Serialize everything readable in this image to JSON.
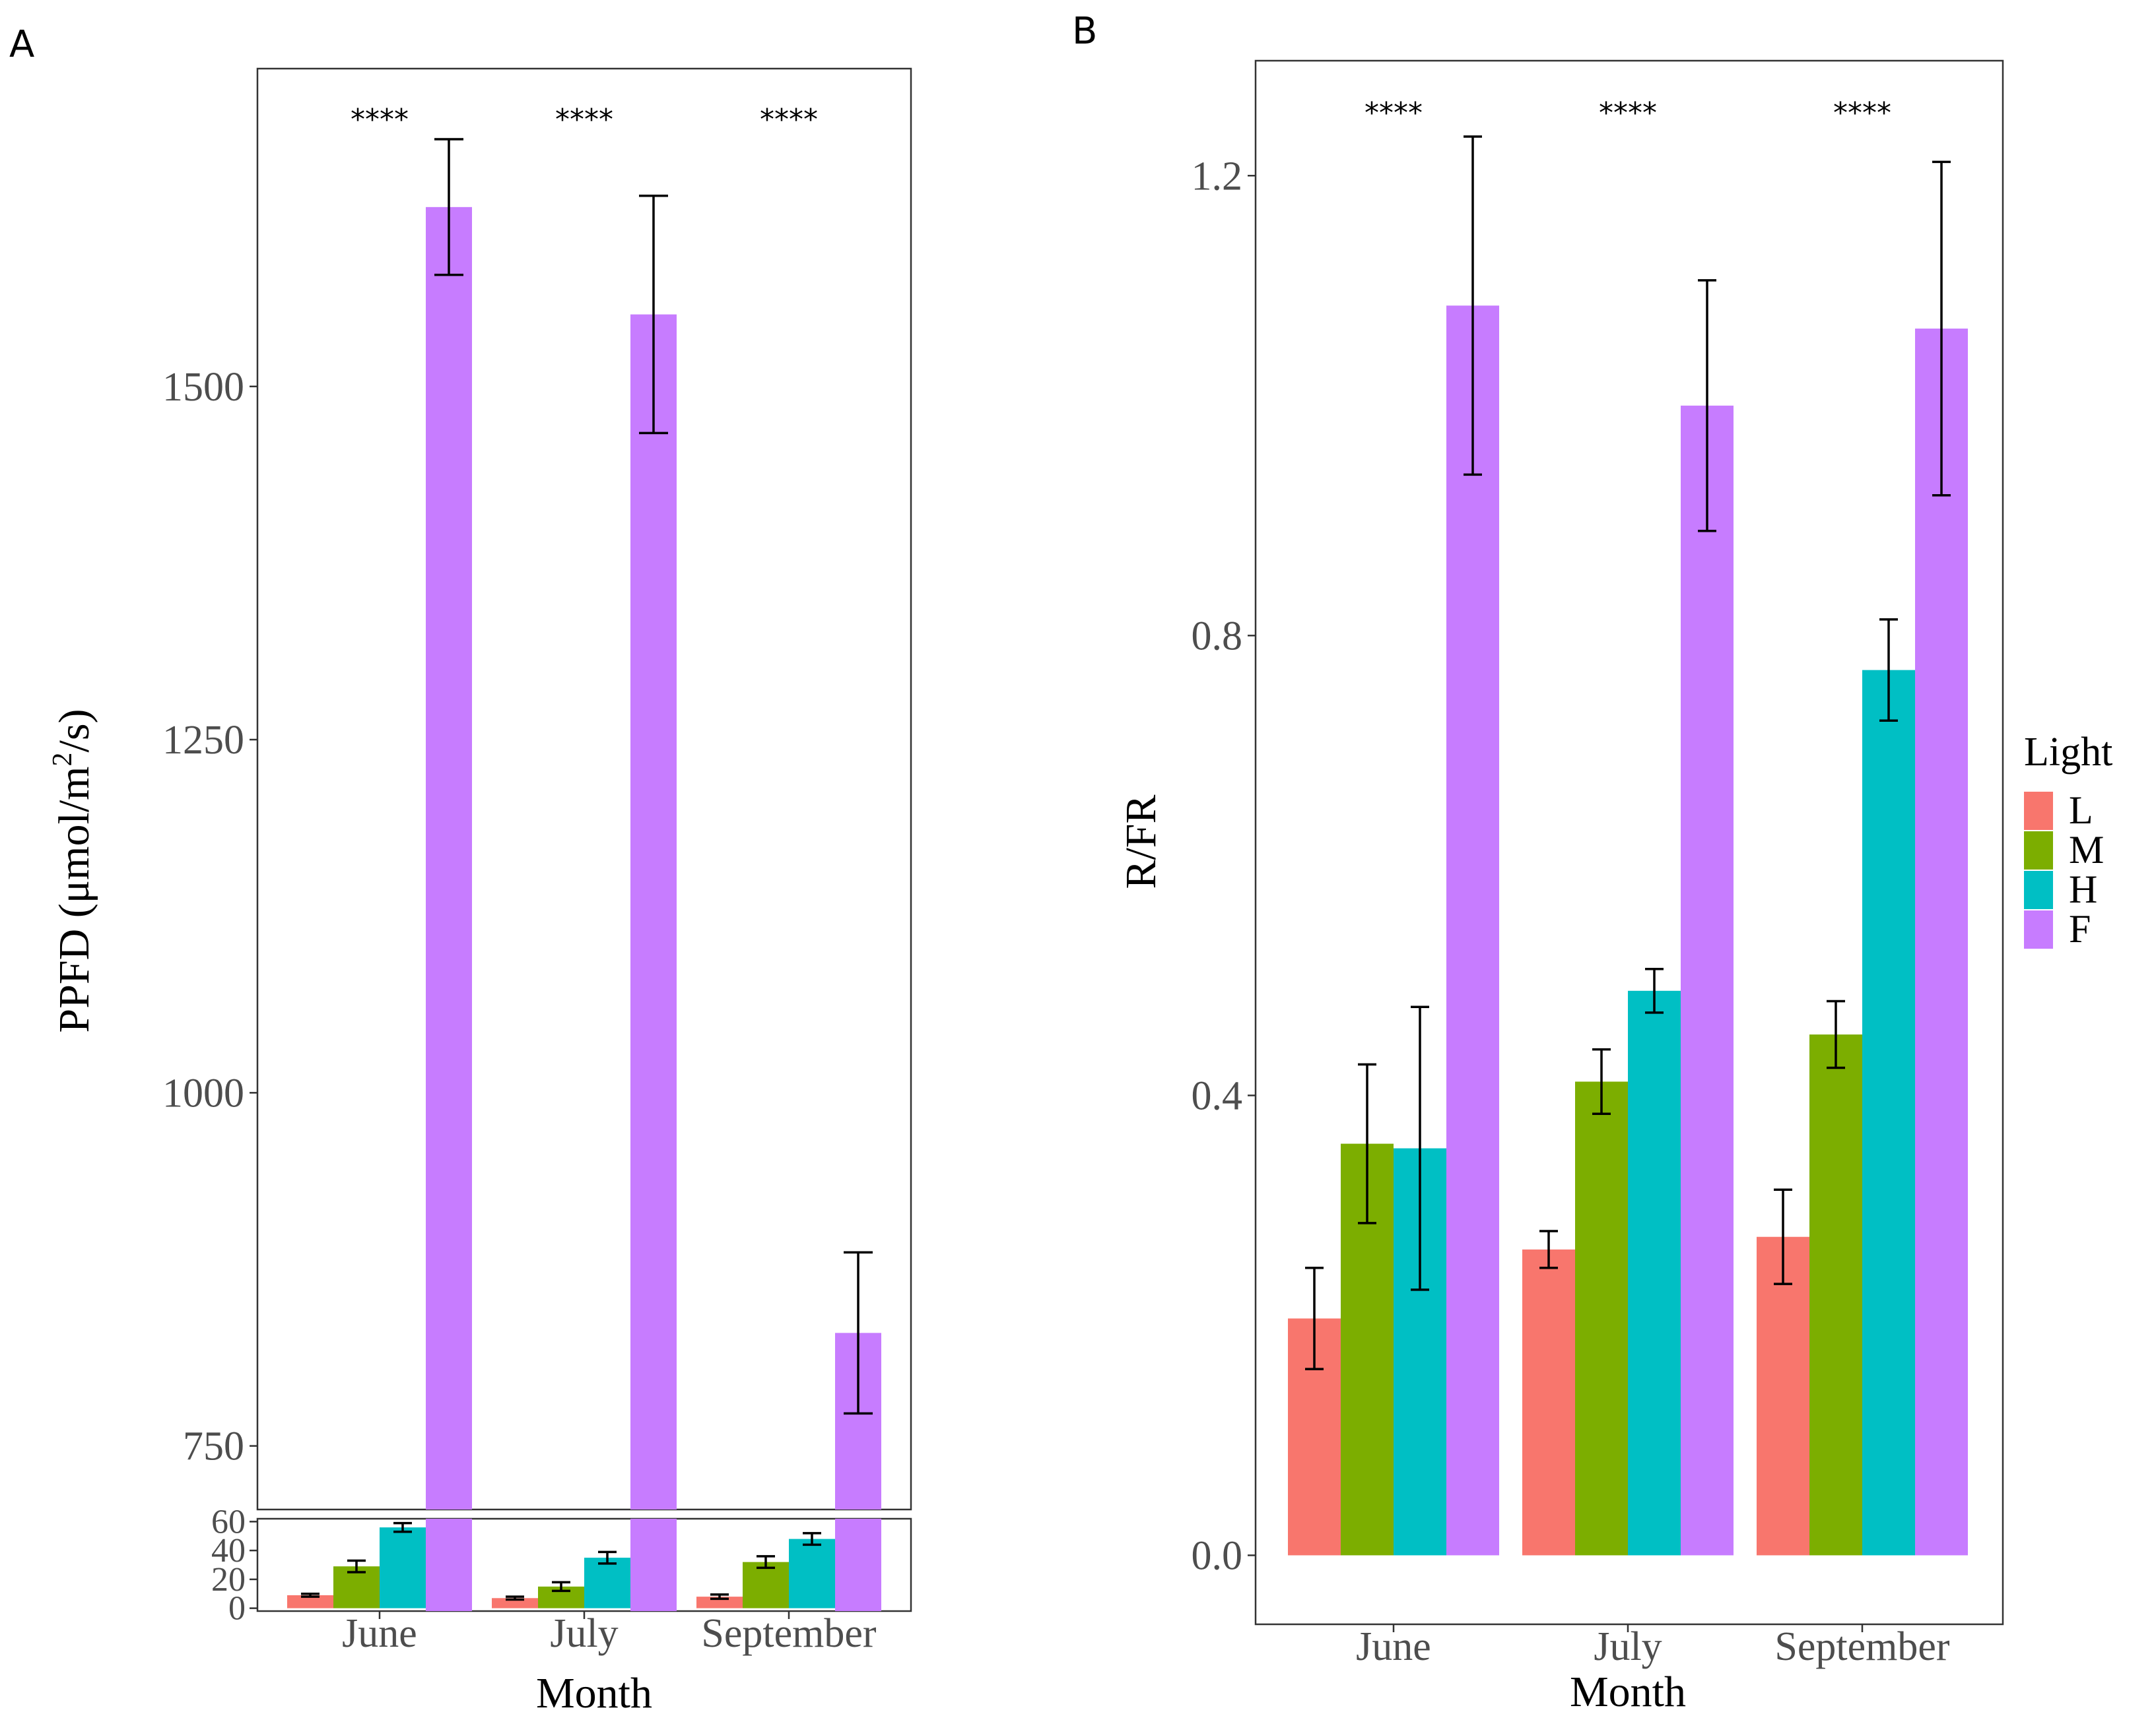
{
  "panels": {
    "a_label": "A",
    "b_label": "B"
  },
  "legend": {
    "title": "Light",
    "items": [
      {
        "label": "L",
        "color": "#F8766D"
      },
      {
        "label": "M",
        "color": "#7CAE00"
      },
      {
        "label": "H",
        "color": "#00BFC4"
      },
      {
        "label": "F",
        "color": "#C77CFF"
      }
    ]
  },
  "chart_data": [
    {
      "panel": "A",
      "type": "bar",
      "title": "",
      "xlabel": "Month",
      "ylabel_main": "PPFD (μmol/m",
      "ylabel_sup": "2",
      "ylabel_tail": "/s)",
      "categories": [
        "June",
        "July",
        "September"
      ],
      "series": [
        {
          "name": "L",
          "values": [
            9,
            7,
            8
          ],
          "errors": [
            1,
            1,
            1.5
          ]
        },
        {
          "name": "M",
          "values": [
            29,
            15,
            32
          ],
          "errors": [
            4,
            3,
            4
          ]
        },
        {
          "name": "H",
          "values": [
            56,
            35,
            48
          ],
          "errors": [
            3,
            4,
            4
          ]
        },
        {
          "name": "F",
          "values": [
            1627,
            1551,
            830
          ],
          "errors": [
            48,
            84,
            57
          ]
        }
      ],
      "significance": [
        "****",
        "****",
        "****"
      ],
      "ylim_upper": [
        705,
        1725
      ],
      "ylim_lower": [
        -2,
        62
      ],
      "yticks_upper": [
        750,
        1000,
        1250,
        1500
      ],
      "yticks_lower": [
        0,
        20,
        40,
        60
      ]
    },
    {
      "panel": "B",
      "type": "bar",
      "title": "",
      "xlabel": "Month",
      "ylabel": "R/FR",
      "categories": [
        "June",
        "July",
        "September"
      ],
      "series": [
        {
          "name": "L",
          "values": [
            0.206,
            0.266,
            0.277
          ],
          "errors": [
            0.044,
            0.016,
            0.041
          ]
        },
        {
          "name": "M",
          "values": [
            0.358,
            0.412,
            0.453
          ],
          "errors": [
            0.069,
            0.028,
            0.029
          ]
        },
        {
          "name": "H",
          "values": [
            0.354,
            0.491,
            0.77
          ],
          "errors": [
            0.123,
            0.019,
            0.044
          ]
        },
        {
          "name": "F",
          "values": [
            1.087,
            1.0,
            1.067
          ],
          "errors": [
            0.147,
            0.109,
            0.145
          ]
        }
      ],
      "significance": [
        "****",
        "****",
        "****"
      ],
      "ylim": [
        -0.06,
        1.3
      ],
      "yticks": [
        0.0,
        0.4,
        0.8,
        1.2
      ],
      "ytick_labels": [
        "0.0",
        "0.4",
        "0.8",
        "1.2"
      ]
    }
  ]
}
